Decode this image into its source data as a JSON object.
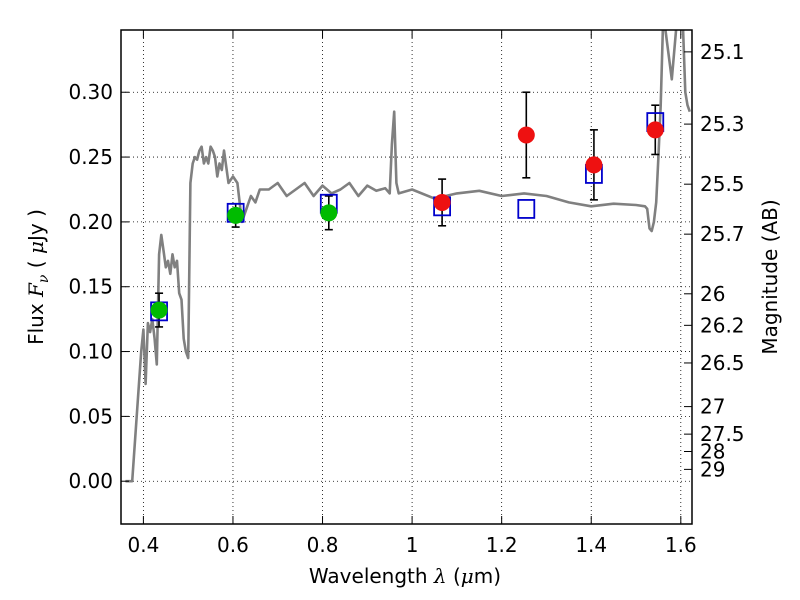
{
  "chart_data": {
    "type": "scatter",
    "xlabel": "Wavelength  λ (μm)",
    "ylabel": "Flux  Fν  ( μJy )",
    "y2label": "Magnitude (AB)",
    "xlim": [
      0.35,
      1.625
    ],
    "ylim": [
      -0.033,
      0.348
    ],
    "x_ticks": [
      0.4,
      0.6,
      0.8,
      1.0,
      1.2,
      1.4,
      1.6
    ],
    "x_tick_labels": [
      "0.4",
      "0.6",
      "0.8",
      "1",
      "1.2",
      "1.4",
      "1.6"
    ],
    "y_ticks": [
      0.0,
      0.05,
      0.1,
      0.15,
      0.2,
      0.25,
      0.3
    ],
    "y_tick_labels": [
      "0.00",
      "0.05",
      "0.10",
      "0.15",
      "0.20",
      "0.25",
      "0.30"
    ],
    "mag_ticks": [
      "25.1",
      "25.3",
      "25.5",
      "25.7",
      "26",
      "26.2",
      "26.5",
      "27",
      "27.5",
      "28",
      "29"
    ],
    "grid": true,
    "series": [
      {
        "marker": "open-square",
        "color": "#0000cc",
        "x": [
          0.435,
          0.606,
          0.814,
          1.067,
          1.255,
          1.406,
          1.543
        ],
        "y": [
          0.131,
          0.207,
          0.214,
          0.212,
          0.21,
          0.237,
          0.277
        ]
      },
      {
        "marker": "filled-circle",
        "color": "#00bb00",
        "x": [
          0.435,
          0.606,
          0.814
        ],
        "y": [
          0.132,
          0.205,
          0.207
        ],
        "yerr": [
          0.013,
          0.009,
          0.013
        ]
      },
      {
        "marker": "filled-circle",
        "color": "#ee1111",
        "x": [
          1.067,
          1.255,
          1.406,
          1.543
        ],
        "y": [
          0.215,
          0.267,
          0.244,
          0.271
        ],
        "yerr": [
          0.018,
          0.033,
          0.027,
          0.019
        ]
      },
      {
        "style": "line",
        "color": "#808080",
        "x": [
          0.36,
          0.375,
          0.385,
          0.395,
          0.4,
          0.405,
          0.41,
          0.415,
          0.42,
          0.425,
          0.43,
          0.435,
          0.44,
          0.445,
          0.45,
          0.455,
          0.46,
          0.465,
          0.47,
          0.475,
          0.48,
          0.485,
          0.49,
          0.495,
          0.5,
          0.505,
          0.51,
          0.515,
          0.52,
          0.525,
          0.53,
          0.535,
          0.54,
          0.545,
          0.55,
          0.555,
          0.56,
          0.565,
          0.57,
          0.575,
          0.58,
          0.59,
          0.6,
          0.61,
          0.62,
          0.63,
          0.64,
          0.65,
          0.66,
          0.68,
          0.7,
          0.72,
          0.74,
          0.76,
          0.78,
          0.8,
          0.82,
          0.84,
          0.86,
          0.88,
          0.9,
          0.92,
          0.94,
          0.95,
          0.955,
          0.96,
          0.965,
          0.97,
          1.0,
          1.05,
          1.1,
          1.15,
          1.2,
          1.25,
          1.3,
          1.35,
          1.4,
          1.45,
          1.5,
          1.52,
          1.525,
          1.53,
          1.535,
          1.54,
          1.545,
          1.55,
          1.555,
          1.56,
          1.565,
          1.58,
          1.59,
          1.6,
          1.605,
          1.61,
          1.615,
          1.62
        ],
        "y": [
          0.0,
          0.0,
          0.05,
          0.1,
          0.117,
          0.075,
          0.122,
          0.115,
          0.125,
          0.11,
          0.09,
          0.175,
          0.19,
          0.178,
          0.165,
          0.17,
          0.16,
          0.175,
          0.165,
          0.17,
          0.145,
          0.14,
          0.11,
          0.1,
          0.095,
          0.23,
          0.245,
          0.25,
          0.248,
          0.255,
          0.258,
          0.245,
          0.25,
          0.245,
          0.258,
          0.255,
          0.25,
          0.235,
          0.245,
          0.24,
          0.255,
          0.23,
          0.235,
          0.23,
          0.2,
          0.21,
          0.22,
          0.215,
          0.225,
          0.225,
          0.23,
          0.22,
          0.225,
          0.23,
          0.22,
          0.228,
          0.222,
          0.225,
          0.23,
          0.22,
          0.228,
          0.224,
          0.226,
          0.222,
          0.26,
          0.285,
          0.23,
          0.222,
          0.225,
          0.218,
          0.222,
          0.224,
          0.22,
          0.222,
          0.22,
          0.215,
          0.212,
          0.214,
          0.213,
          0.212,
          0.21,
          0.195,
          0.193,
          0.2,
          0.215,
          0.25,
          0.29,
          0.35,
          0.35,
          0.31,
          0.35,
          0.36,
          0.35,
          0.3,
          0.29,
          0.285
        ]
      }
    ]
  }
}
